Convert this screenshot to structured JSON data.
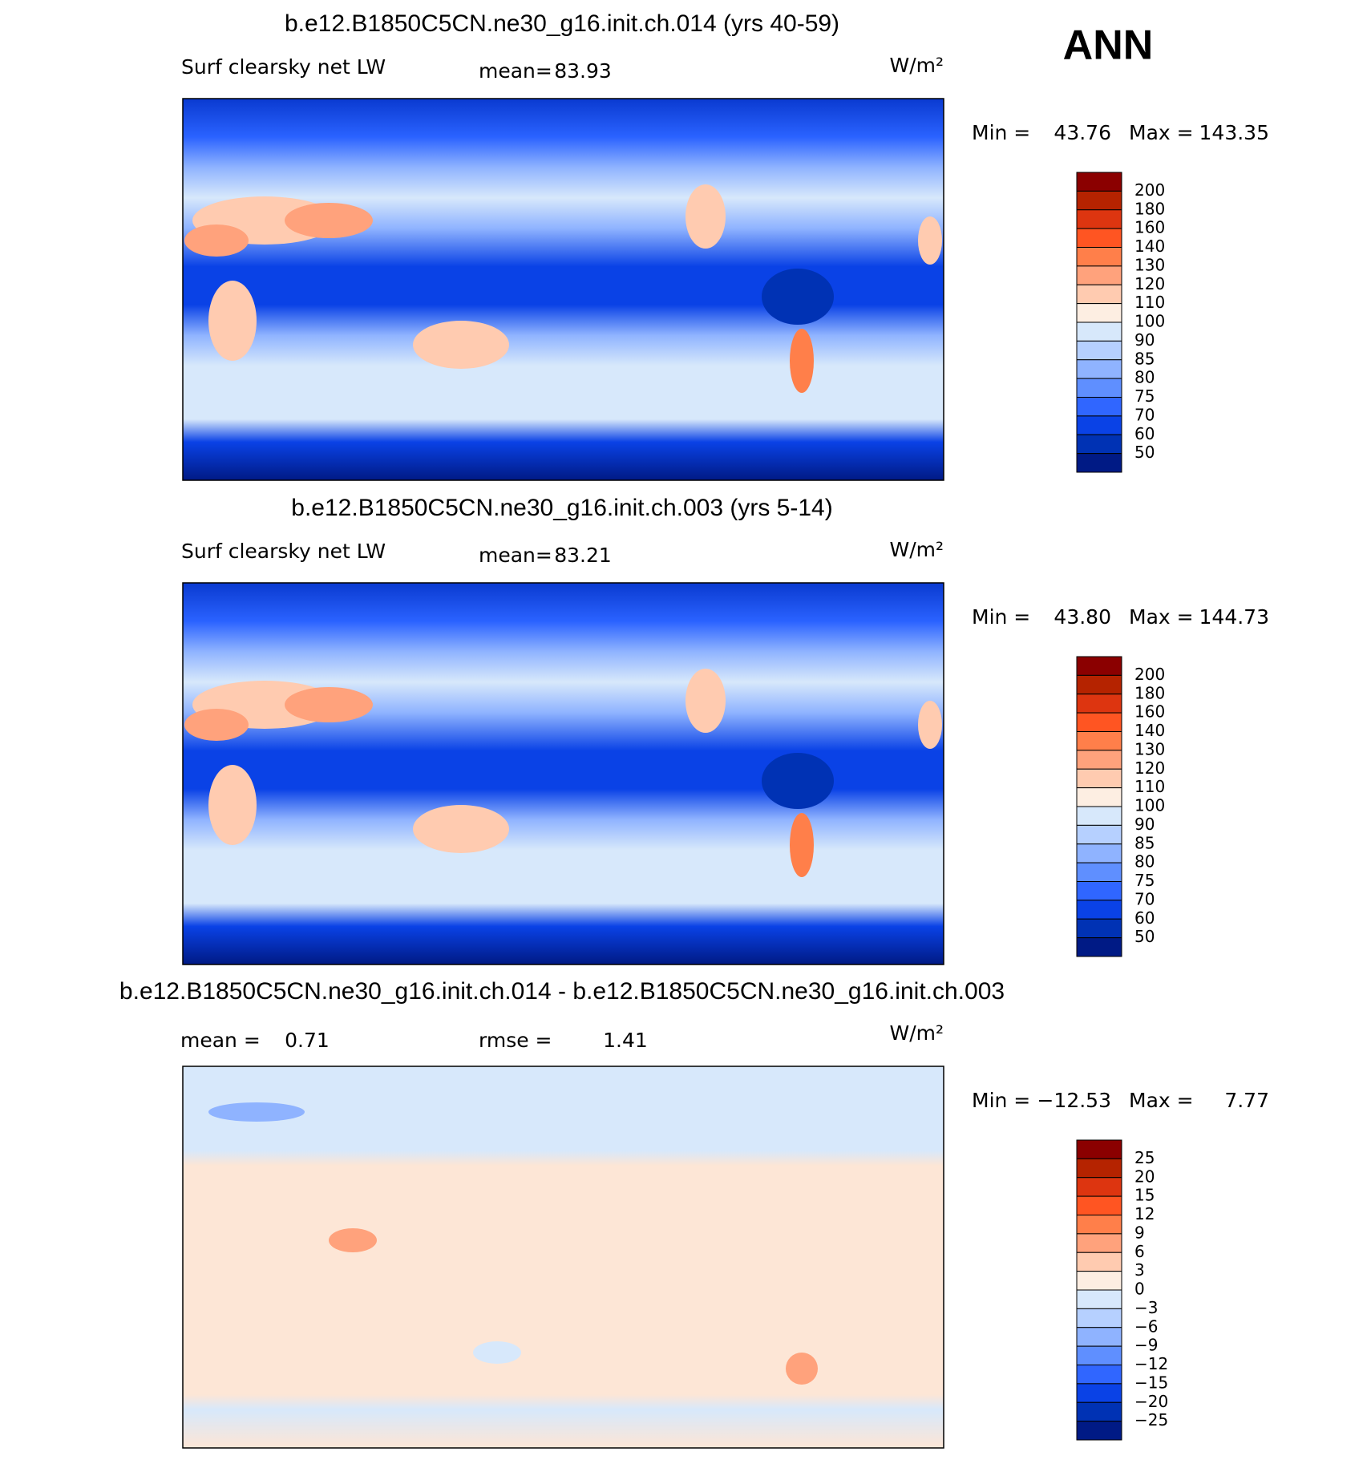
{
  "header": {
    "season": "ANN"
  },
  "panels": [
    {
      "title": "b.e12.B1850C5CN.ne30_g16.init.ch.014 (yrs 40-59)",
      "variable": "Surf clearsky net LW",
      "stat1_label": "mean=",
      "stat1_value": "83.93",
      "units": "W/m²",
      "min_label": "Min =",
      "min_value": "43.76",
      "max_label": "Max =",
      "max_value": "143.35",
      "colorbar": {
        "levels": [
          "200",
          "180",
          "160",
          "140",
          "130",
          "120",
          "110",
          "100",
          "90",
          "85",
          "80",
          "75",
          "70",
          "60",
          "50"
        ],
        "colors": [
          "#8b0000",
          "#b52300",
          "#dd3510",
          "#ff5522",
          "#ff7f4a",
          "#ffa27c",
          "#ffcbb0",
          "#fdeee2",
          "#d7e8fb",
          "#b6d0ff",
          "#8fb3ff",
          "#5f8fff",
          "#3066ff",
          "#0a42e6",
          "#0032b4",
          "#001a85"
        ]
      }
    },
    {
      "title": "b.e12.B1850C5CN.ne30_g16.init.ch.003 (yrs 5-14)",
      "variable": "Surf clearsky net LW",
      "stat1_label": "mean=",
      "stat1_value": "83.21",
      "units": "W/m²",
      "min_label": "Min =",
      "min_value": "43.80",
      "max_label": "Max =",
      "max_value": "144.73",
      "colorbar": {
        "levels": [
          "200",
          "180",
          "160",
          "140",
          "130",
          "120",
          "110",
          "100",
          "90",
          "85",
          "80",
          "75",
          "70",
          "60",
          "50"
        ],
        "colors": [
          "#8b0000",
          "#b52300",
          "#dd3510",
          "#ff5522",
          "#ff7f4a",
          "#ffa27c",
          "#ffcbb0",
          "#fdeee2",
          "#d7e8fb",
          "#b6d0ff",
          "#8fb3ff",
          "#5f8fff",
          "#3066ff",
          "#0a42e6",
          "#0032b4",
          "#001a85"
        ]
      }
    },
    {
      "title": "b.e12.B1850C5CN.ne30_g16.init.ch.014 - b.e12.B1850C5CN.ne30_g16.init.ch.003",
      "stat1_label": "mean =",
      "stat1_value": "0.71",
      "stat2_label": "rmse =",
      "stat2_value": "1.41",
      "units": "W/m²",
      "min_label": "Min =",
      "min_value": "−12.53",
      "max_label": "Max =",
      "max_value": "7.77",
      "colorbar": {
        "levels": [
          "25",
          "20",
          "15",
          "12",
          "9",
          "6",
          "3",
          "0",
          "−3",
          "−6",
          "−9",
          "−12",
          "−15",
          "−20",
          "−25"
        ],
        "colors": [
          "#8b0000",
          "#b52300",
          "#dd3510",
          "#ff5522",
          "#ff7f4a",
          "#ffa27c",
          "#ffcbb0",
          "#fdeee2",
          "#d7e8fb",
          "#b6d0ff",
          "#8fb3ff",
          "#5f8fff",
          "#3066ff",
          "#0a42e6",
          "#0032b4",
          "#001a85"
        ]
      }
    }
  ]
}
